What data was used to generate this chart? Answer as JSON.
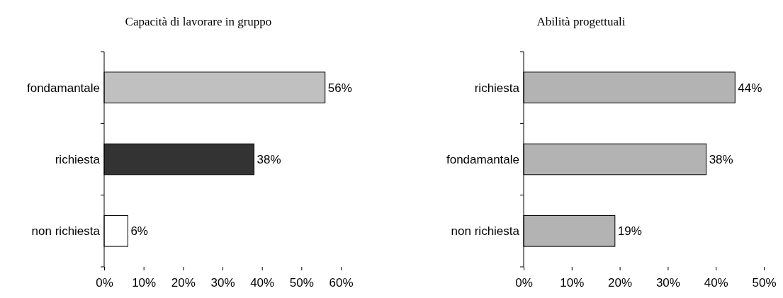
{
  "chart_data": [
    {
      "type": "bar",
      "orientation": "horizontal",
      "title": "Capacità di lavorare in gruppo",
      "categories": [
        "fondamantale",
        "richiesta",
        "non richiesta"
      ],
      "values": [
        56,
        38,
        6
      ],
      "colors": [
        "#c0c0c0",
        "#333333",
        "#ffffff"
      ],
      "value_labels": [
        "56%",
        "38%",
        "6%"
      ],
      "xlim": [
        0,
        60
      ],
      "xticks": [
        {
          "value": 0,
          "label": "0%"
        },
        {
          "value": 10,
          "label": "10%"
        },
        {
          "value": 20,
          "label": "20%"
        },
        {
          "value": 30,
          "label": "30%"
        },
        {
          "value": 40,
          "label": "40%"
        },
        {
          "value": 50,
          "label": "50%"
        },
        {
          "value": 60,
          "label": "60%"
        }
      ]
    },
    {
      "type": "bar",
      "orientation": "horizontal",
      "title": "Abilità progettuali",
      "categories": [
        "richiesta",
        "fondamantale",
        "non richiesta"
      ],
      "values": [
        44,
        38,
        19
      ],
      "colors": [
        "#b3b3b3",
        "#b3b3b3",
        "#b3b3b3"
      ],
      "value_labels": [
        "44%",
        "38%",
        "19%"
      ],
      "xlim": [
        0,
        50
      ],
      "xticks": [
        {
          "value": 0,
          "label": "0%"
        },
        {
          "value": 10,
          "label": "10%"
        },
        {
          "value": 20,
          "label": "20%"
        },
        {
          "value": 30,
          "label": "30%"
        },
        {
          "value": 40,
          "label": "40%"
        },
        {
          "value": 50,
          "label": "50%"
        }
      ]
    }
  ]
}
